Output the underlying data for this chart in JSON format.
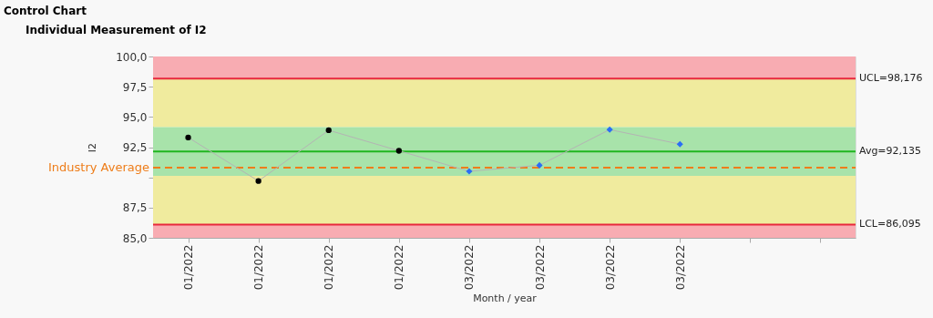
{
  "chart_data": {
    "type": "line",
    "title": "Control Chart",
    "subtitle": "Individual Measurement of I2",
    "xlabel": "Month / year",
    "ylabel": "I2",
    "categories": [
      "01/2022",
      "01/2022",
      "01/2022",
      "01/2022",
      "03/2022",
      "03/2022",
      "03/2022",
      "03/2022",
      null,
      null
    ],
    "series": [
      {
        "color": "#b4b4b4",
        "marker": "none",
        "values": [
          93.3,
          89.7,
          93.9,
          92.2,
          90.5,
          91.0,
          93.95,
          92.75,
          null,
          null
        ]
      },
      {
        "type": "scatter",
        "color": "#000000",
        "marker": "circle",
        "values": [
          93.3,
          89.7,
          93.9,
          92.2,
          null,
          null,
          null,
          null,
          null,
          null
        ]
      },
      {
        "type": "scatter",
        "color": "#2a6ef5",
        "marker": "diamond",
        "values": [
          null,
          null,
          null,
          null,
          90.5,
          91.0,
          93.95,
          92.75,
          null,
          null
        ]
      }
    ],
    "ylim": [
      85,
      100
    ],
    "yticks": [
      {
        "value": 85,
        "label": "85,0"
      },
      {
        "value": 87.5,
        "label": "87,5"
      },
      {
        "value": 90,
        "label": null
      },
      {
        "value": 92.5,
        "label": "92,5"
      },
      {
        "value": 95,
        "label": "95,0"
      },
      {
        "value": 97.5,
        "label": "97,5"
      },
      {
        "value": 100,
        "label": "100,0"
      }
    ],
    "bands": [
      {
        "axis": "y",
        "from": 98.176,
        "to": 100,
        "color": "#f8acb2"
      },
      {
        "axis": "y",
        "from": 94.149,
        "to": 98.176,
        "color": "#f0eb9e"
      },
      {
        "axis": "y",
        "from": 90.121,
        "to": 94.149,
        "color": "#a8e3aa"
      },
      {
        "axis": "y",
        "from": 86.095,
        "to": 90.121,
        "color": "#f0eb9e"
      },
      {
        "axis": "y",
        "from": 85,
        "to": 86.095,
        "color": "#f8acb2"
      }
    ],
    "ref_lines": [
      {
        "axis": "y",
        "value": 98.176,
        "label": "UCL=98,176",
        "color": "#e8283c",
        "line_style": "solid"
      },
      {
        "axis": "y",
        "value": 92.135,
        "label": "Avg=92,135",
        "color": "#1fb51f",
        "line_style": "solid"
      },
      {
        "axis": "y",
        "value": 86.095,
        "label": "LCL=86,095",
        "color": "#e8283c",
        "line_style": "solid"
      },
      {
        "axis": "y",
        "value": 90.8,
        "label": "Industry Average",
        "color": "#ee7d1a",
        "line_style": "dashed"
      }
    ],
    "grid": false
  }
}
